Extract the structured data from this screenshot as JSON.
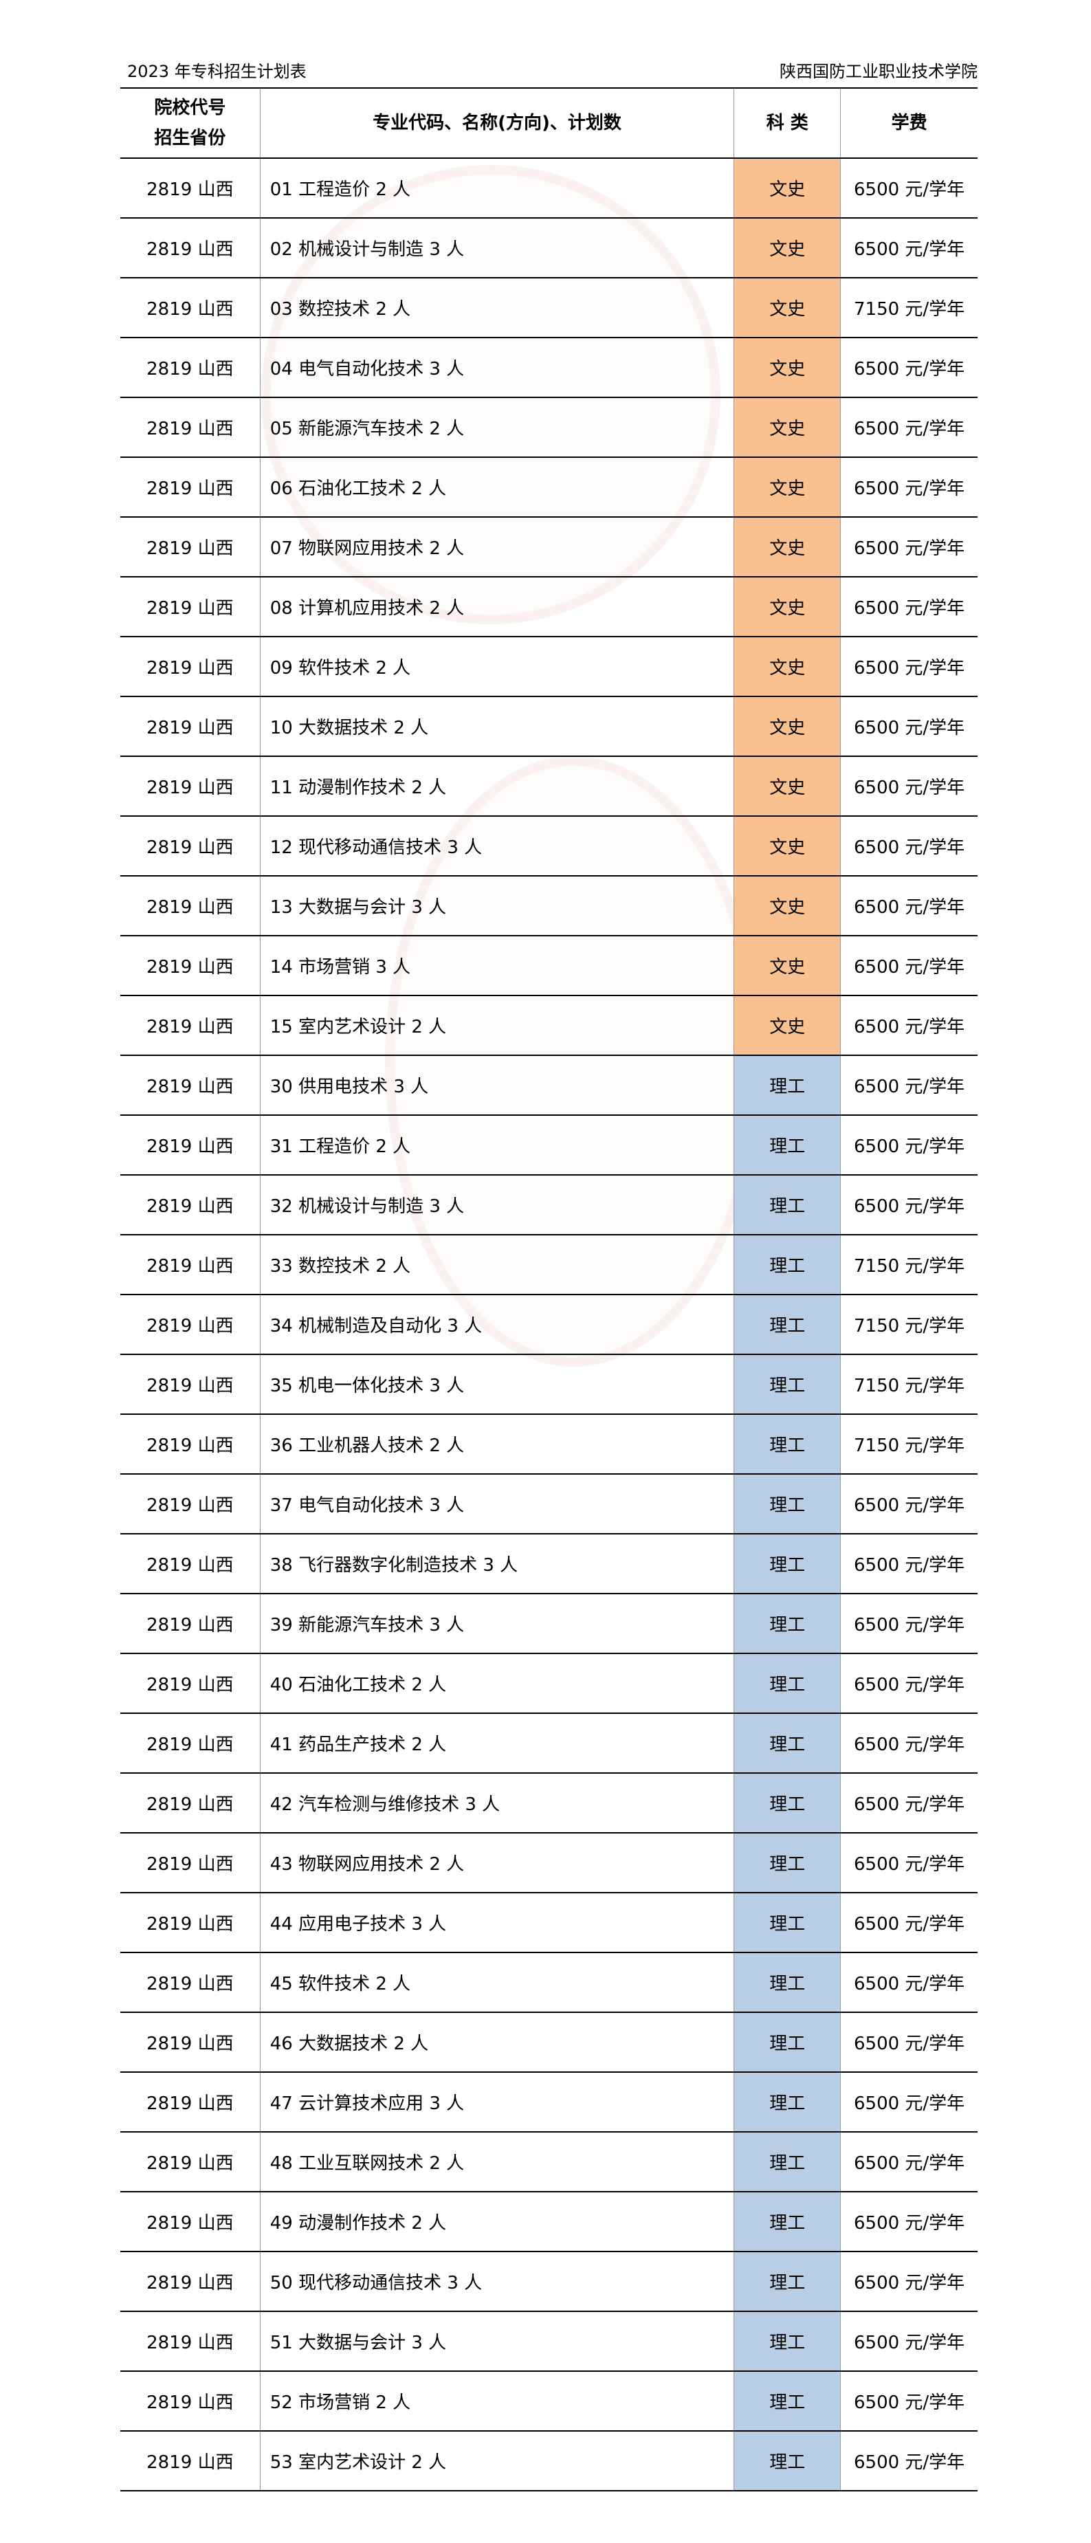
{
  "header": {
    "left": "2023 年专科招生计划表",
    "right": "陕西国防工业职业技术学院"
  },
  "columns": {
    "code_line1": "院校代号",
    "code_line2": "招生省份",
    "major": "专业代码、名称(方向)、计划数",
    "category": "科 类",
    "fee": "学费"
  },
  "colors": {
    "wen": "#f8c18f",
    "li": "#b9cde5"
  },
  "rows": [
    {
      "school": "2819 山西",
      "major": "01 工程造价 2 人",
      "category": "文史",
      "fee": "6500 元/学年"
    },
    {
      "school": "2819 山西",
      "major": "02 机械设计与制造 3 人",
      "category": "文史",
      "fee": "6500 元/学年"
    },
    {
      "school": "2819 山西",
      "major": "03 数控技术 2 人",
      "category": "文史",
      "fee": "7150 元/学年"
    },
    {
      "school": "2819 山西",
      "major": "04 电气自动化技术 3 人",
      "category": "文史",
      "fee": "6500 元/学年"
    },
    {
      "school": "2819 山西",
      "major": "05 新能源汽车技术 2 人",
      "category": "文史",
      "fee": "6500 元/学年"
    },
    {
      "school": "2819 山西",
      "major": "06 石油化工技术 2 人",
      "category": "文史",
      "fee": "6500 元/学年"
    },
    {
      "school": "2819 山西",
      "major": "07 物联网应用技术 2 人",
      "category": "文史",
      "fee": "6500 元/学年"
    },
    {
      "school": "2819 山西",
      "major": "08 计算机应用技术 2 人",
      "category": "文史",
      "fee": "6500 元/学年"
    },
    {
      "school": "2819 山西",
      "major": "09 软件技术 2 人",
      "category": "文史",
      "fee": "6500 元/学年"
    },
    {
      "school": "2819 山西",
      "major": "10 大数据技术 2 人",
      "category": "文史",
      "fee": "6500 元/学年"
    },
    {
      "school": "2819 山西",
      "major": "11 动漫制作技术 2 人",
      "category": "文史",
      "fee": "6500 元/学年"
    },
    {
      "school": "2819 山西",
      "major": "12 现代移动通信技术 3 人",
      "category": "文史",
      "fee": "6500 元/学年"
    },
    {
      "school": "2819 山西",
      "major": "13 大数据与会计 3 人",
      "category": "文史",
      "fee": "6500 元/学年"
    },
    {
      "school": "2819 山西",
      "major": "14 市场营销 3 人",
      "category": "文史",
      "fee": "6500 元/学年"
    },
    {
      "school": "2819 山西",
      "major": "15 室内艺术设计 2 人",
      "category": "文史",
      "fee": "6500 元/学年"
    },
    {
      "school": "2819 山西",
      "major": "30 供用电技术 3 人",
      "category": "理工",
      "fee": "6500 元/学年"
    },
    {
      "school": "2819 山西",
      "major": "31 工程造价 2 人",
      "category": "理工",
      "fee": "6500 元/学年"
    },
    {
      "school": "2819 山西",
      "major": "32 机械设计与制造 3 人",
      "category": "理工",
      "fee": "6500 元/学年"
    },
    {
      "school": "2819 山西",
      "major": "33 数控技术 2 人",
      "category": "理工",
      "fee": "7150 元/学年"
    },
    {
      "school": "2819 山西",
      "major": "34 机械制造及自动化 3 人",
      "category": "理工",
      "fee": "7150 元/学年"
    },
    {
      "school": "2819 山西",
      "major": "35 机电一体化技术 3 人",
      "category": "理工",
      "fee": "7150 元/学年"
    },
    {
      "school": "2819 山西",
      "major": "36 工业机器人技术 2 人",
      "category": "理工",
      "fee": "7150 元/学年"
    },
    {
      "school": "2819 山西",
      "major": "37 电气自动化技术 3 人",
      "category": "理工",
      "fee": "6500 元/学年"
    },
    {
      "school": "2819 山西",
      "major": "38 飞行器数字化制造技术 3 人",
      "category": "理工",
      "fee": "6500 元/学年"
    },
    {
      "school": "2819 山西",
      "major": "39 新能源汽车技术 3 人",
      "category": "理工",
      "fee": "6500 元/学年"
    },
    {
      "school": "2819 山西",
      "major": "40 石油化工技术 2 人",
      "category": "理工",
      "fee": "6500 元/学年"
    },
    {
      "school": "2819 山西",
      "major": "41 药品生产技术 2 人",
      "category": "理工",
      "fee": "6500 元/学年"
    },
    {
      "school": "2819 山西",
      "major": "42 汽车检测与维修技术 3 人",
      "category": "理工",
      "fee": "6500 元/学年"
    },
    {
      "school": "2819 山西",
      "major": "43 物联网应用技术 2 人",
      "category": "理工",
      "fee": "6500 元/学年"
    },
    {
      "school": "2819 山西",
      "major": "44 应用电子技术 3 人",
      "category": "理工",
      "fee": "6500 元/学年"
    },
    {
      "school": "2819 山西",
      "major": "45 软件技术 2 人",
      "category": "理工",
      "fee": "6500 元/学年"
    },
    {
      "school": "2819 山西",
      "major": "46 大数据技术 2 人",
      "category": "理工",
      "fee": "6500 元/学年"
    },
    {
      "school": "2819 山西",
      "major": "47 云计算技术应用 3 人",
      "category": "理工",
      "fee": "6500 元/学年"
    },
    {
      "school": "2819 山西",
      "major": "48 工业互联网技术 2 人",
      "category": "理工",
      "fee": "6500 元/学年"
    },
    {
      "school": "2819 山西",
      "major": "49 动漫制作技术 2 人",
      "category": "理工",
      "fee": "6500 元/学年"
    },
    {
      "school": "2819 山西",
      "major": "50 现代移动通信技术 3 人",
      "category": "理工",
      "fee": "6500 元/学年"
    },
    {
      "school": "2819 山西",
      "major": "51 大数据与会计 3 人",
      "category": "理工",
      "fee": "6500 元/学年"
    },
    {
      "school": "2819 山西",
      "major": "52 市场营销 2 人",
      "category": "理工",
      "fee": "6500 元/学年"
    },
    {
      "school": "2819 山西",
      "major": "53 室内艺术设计 2 人",
      "category": "理工",
      "fee": "6500 元/学年"
    }
  ]
}
